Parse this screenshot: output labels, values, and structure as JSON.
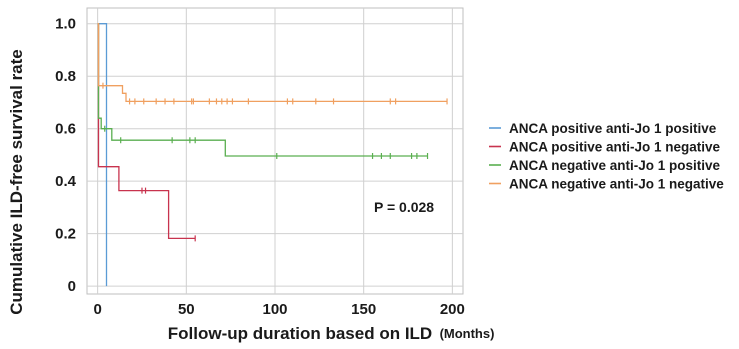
{
  "chart_data": {
    "type": "line",
    "title": "",
    "xlabel": "Follow-up duration based on ILD",
    "x_unit": "(Months)",
    "ylabel": "Cumulative ILD-free  survival rate",
    "xlim": [
      -6,
      206
    ],
    "ylim": [
      -0.03,
      1.06
    ],
    "xticks": [
      0,
      50,
      100,
      150,
      200
    ],
    "yticks": [
      0,
      0.2,
      0.4,
      0.6,
      0.8,
      1.0
    ],
    "ytick_labels": [
      "0",
      "0.2",
      "0.4",
      "0.6",
      "0.8",
      "1.0"
    ],
    "grid": true,
    "legend_position": "right",
    "annotation": "P = 0.028",
    "series": [
      {
        "name": "ANCA positive anti-Jo 1 positive",
        "color": "#5b9bd5",
        "steps": [
          [
            0,
            1.0
          ],
          [
            5,
            1.0
          ],
          [
            5,
            0.0
          ]
        ],
        "censored": []
      },
      {
        "name": "ANCA positive anti-Jo 1 negative",
        "color": "#c8334e",
        "steps": [
          [
            0,
            1.0
          ],
          [
            0.5,
            1.0
          ],
          [
            0.5,
            0.455
          ],
          [
            12,
            0.455
          ],
          [
            12,
            0.364
          ],
          [
            40,
            0.364
          ],
          [
            40,
            0.182
          ],
          [
            55,
            0.182
          ]
        ],
        "censored": [
          [
            25,
            0.364
          ],
          [
            27,
            0.364
          ],
          [
            55,
            0.182
          ]
        ]
      },
      {
        "name": "ANCA negative anti-Jo 1 positive",
        "color": "#5aaf50",
        "steps": [
          [
            0,
            1.0
          ],
          [
            0.5,
            1.0
          ],
          [
            0.5,
            0.64
          ],
          [
            2,
            0.64
          ],
          [
            2,
            0.6
          ],
          [
            8,
            0.6
          ],
          [
            8,
            0.556
          ],
          [
            72,
            0.556
          ],
          [
            72,
            0.496
          ],
          [
            186,
            0.496
          ]
        ],
        "censored": [
          [
            4,
            0.6
          ],
          [
            13,
            0.556
          ],
          [
            42,
            0.556
          ],
          [
            52,
            0.556
          ],
          [
            55,
            0.556
          ],
          [
            101,
            0.496
          ],
          [
            155,
            0.496
          ],
          [
            160,
            0.496
          ],
          [
            165,
            0.496
          ],
          [
            177,
            0.496
          ],
          [
            180,
            0.496
          ],
          [
            186,
            0.496
          ]
        ]
      },
      {
        "name": "ANCA negative anti-Jo 1 negative",
        "color": "#f0a060",
        "steps": [
          [
            0,
            1.0
          ],
          [
            0.5,
            1.0
          ],
          [
            0.5,
            0.764
          ],
          [
            14,
            0.764
          ],
          [
            14,
            0.735
          ],
          [
            16,
            0.735
          ],
          [
            16,
            0.704
          ],
          [
            197,
            0.704
          ]
        ],
        "censored": [
          [
            3,
            0.764
          ],
          [
            18,
            0.704
          ],
          [
            21,
            0.704
          ],
          [
            26,
            0.704
          ],
          [
            33,
            0.704
          ],
          [
            38,
            0.704
          ],
          [
            43,
            0.704
          ],
          [
            53,
            0.704
          ],
          [
            54,
            0.704
          ],
          [
            63,
            0.704
          ],
          [
            67,
            0.704
          ],
          [
            70,
            0.704
          ],
          [
            73,
            0.704
          ],
          [
            76,
            0.704
          ],
          [
            85,
            0.704
          ],
          [
            107,
            0.704
          ],
          [
            110,
            0.704
          ],
          [
            123,
            0.704
          ],
          [
            133,
            0.704
          ],
          [
            165,
            0.704
          ],
          [
            168,
            0.704
          ],
          [
            197,
            0.704
          ]
        ]
      }
    ]
  }
}
